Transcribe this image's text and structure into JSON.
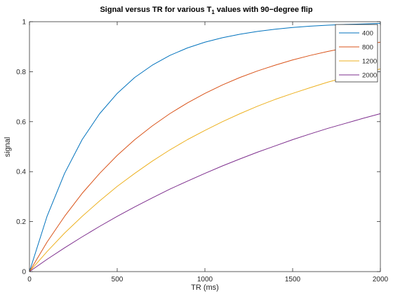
{
  "chart_data": {
    "type": "line",
    "title": {
      "prefix": "Signal versus TR for various T",
      "subscript": "1",
      "suffix": " values with 90−degree flip"
    },
    "xlabel": "TR (ms)",
    "ylabel": "signal",
    "xlim": [
      0,
      2000
    ],
    "ylim": [
      0,
      1
    ],
    "xticks": [
      0,
      500,
      1000,
      1500,
      2000
    ],
    "yticks": [
      0,
      0.2,
      0.4,
      0.6,
      0.8,
      1
    ],
    "xtick_labels": [
      "0",
      "500",
      "1000",
      "1500",
      "2000"
    ],
    "ytick_labels": [
      "0",
      "0.2",
      "0.4",
      "0.6",
      "0.8",
      "1"
    ],
    "grid": false,
    "legend_position": "top-right",
    "x": [
      0,
      100,
      200,
      300,
      400,
      500,
      600,
      700,
      800,
      900,
      1000,
      1100,
      1200,
      1300,
      1400,
      1500,
      1600,
      1700,
      1800,
      1900,
      2000
    ],
    "series": [
      {
        "name": "400",
        "color": "#0072bd",
        "values": [
          0,
          0.221,
          0.393,
          0.528,
          0.632,
          0.713,
          0.777,
          0.826,
          0.865,
          0.895,
          0.918,
          0.936,
          0.95,
          0.961,
          0.97,
          0.977,
          0.982,
          0.986,
          0.989,
          0.991,
          0.993
        ]
      },
      {
        "name": "800",
        "color": "#d95319",
        "values": [
          0,
          0.118,
          0.221,
          0.313,
          0.393,
          0.465,
          0.528,
          0.583,
          0.632,
          0.675,
          0.713,
          0.747,
          0.777,
          0.803,
          0.826,
          0.847,
          0.865,
          0.881,
          0.895,
          0.907,
          0.918
        ]
      },
      {
        "name": "1200",
        "color": "#edb120",
        "values": [
          0,
          0.08,
          0.154,
          0.221,
          0.283,
          0.341,
          0.393,
          0.442,
          0.487,
          0.528,
          0.565,
          0.6,
          0.632,
          0.662,
          0.689,
          0.713,
          0.736,
          0.758,
          0.777,
          0.795,
          0.811
        ]
      },
      {
        "name": "2000",
        "color": "#7e2f8e",
        "values": [
          0,
          0.049,
          0.095,
          0.139,
          0.181,
          0.221,
          0.259,
          0.295,
          0.33,
          0.362,
          0.393,
          0.423,
          0.451,
          0.478,
          0.503,
          0.528,
          0.551,
          0.573,
          0.593,
          0.613,
          0.632
        ]
      }
    ]
  }
}
